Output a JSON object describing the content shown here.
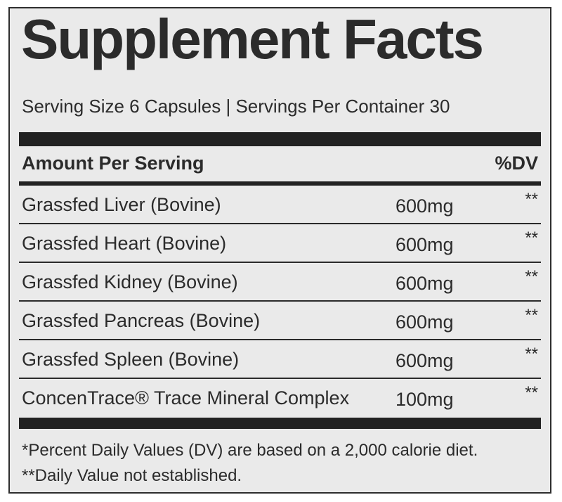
{
  "title": "Supplement Facts",
  "serving_info": "Serving Size 6 Capsules | Servings Per Container 30",
  "header": {
    "amount_label": "Amount Per Serving",
    "dv_label": "%DV"
  },
  "ingredients": [
    {
      "name": "Grassfed Liver (Bovine)",
      "amount": "600mg",
      "dv": "**"
    },
    {
      "name": "Grassfed Heart (Bovine)",
      "amount": "600mg",
      "dv": "**"
    },
    {
      "name": "Grassfed Kidney (Bovine)",
      "amount": "600mg",
      "dv": "**"
    },
    {
      "name": "Grassfed Pancreas (Bovine)",
      "amount": "600mg",
      "dv": "**"
    },
    {
      "name": "Grassfed Spleen (Bovine)",
      "amount": "600mg",
      "dv": "**"
    },
    {
      "name": "ConcenTrace® Trace Mineral Complex",
      "amount": "100mg",
      "dv": "**"
    }
  ],
  "footnotes": [
    "*Percent Daily Values (DV) are based on a 2,000 calorie diet.",
    "**Daily Value not established."
  ]
}
